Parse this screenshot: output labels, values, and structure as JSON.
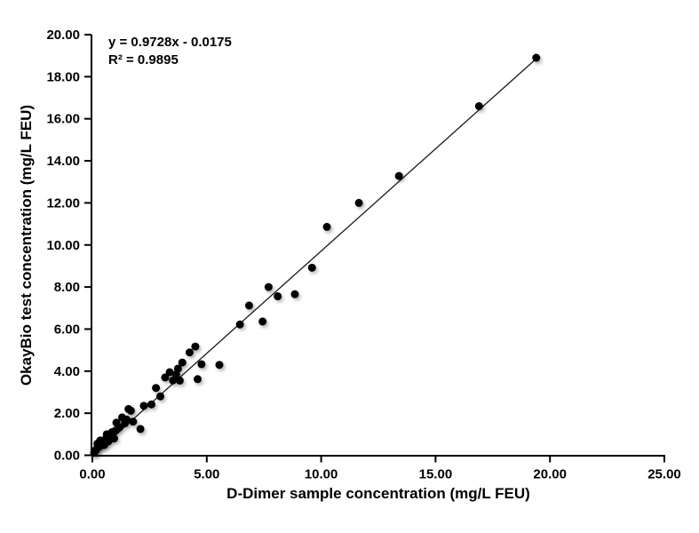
{
  "chart_data": {
    "type": "scatter",
    "title": "",
    "xlabel": "D-Dimer sample concentration (mg/L FEU)",
    "ylabel": "OkayBio test concentration (mg/L FEU)",
    "annotation": {
      "equation": "y = 0.9728x - 0.0175",
      "r_squared": "R² = 0.9895"
    },
    "legend": "none",
    "grid": false,
    "x_axis": {
      "min": 0,
      "max": 25,
      "tick_values": [
        0,
        5,
        10,
        15,
        20,
        25
      ],
      "tick_labels": [
        "0.00",
        "5.00",
        "10.00",
        "15.00",
        "20.00",
        "25.00"
      ]
    },
    "y_axis": {
      "min": 0,
      "max": 20,
      "tick_values": [
        0,
        2,
        4,
        6,
        8,
        10,
        12,
        14,
        16,
        18,
        20
      ],
      "tick_labels": [
        "0.00",
        "2.00",
        "4.00",
        "6.00",
        "8.00",
        "10.00",
        "12.00",
        "14.00",
        "16.00",
        "18.00",
        "20.00"
      ]
    },
    "trendline": {
      "slope": 0.9728,
      "intercept": -0.0175,
      "x_start": 0.2,
      "x_end": 19.4
    },
    "points": [
      [
        0.08,
        0.12
      ],
      [
        0.13,
        0.22
      ],
      [
        0.18,
        0.3
      ],
      [
        0.22,
        0.55
      ],
      [
        0.28,
        0.4
      ],
      [
        0.34,
        0.7
      ],
      [
        0.4,
        0.48
      ],
      [
        0.45,
        0.62
      ],
      [
        0.52,
        0.5
      ],
      [
        0.58,
        0.78
      ],
      [
        0.63,
        1.0
      ],
      [
        0.7,
        0.66
      ],
      [
        0.78,
        0.9
      ],
      [
        0.86,
        1.1
      ],
      [
        0.95,
        0.8
      ],
      [
        1.02,
        1.18
      ],
      [
        1.05,
        1.55
      ],
      [
        1.18,
        1.32
      ],
      [
        1.3,
        1.8
      ],
      [
        1.42,
        1.52
      ],
      [
        1.5,
        1.7
      ],
      [
        1.58,
        2.2
      ],
      [
        1.68,
        2.12
      ],
      [
        1.78,
        1.6
      ],
      [
        2.1,
        1.25
      ],
      [
        2.25,
        2.35
      ],
      [
        2.58,
        2.42
      ],
      [
        2.78,
        3.2
      ],
      [
        2.97,
        2.8
      ],
      [
        3.18,
        3.7
      ],
      [
        3.38,
        3.95
      ],
      [
        3.52,
        3.56
      ],
      [
        3.66,
        3.84
      ],
      [
        3.74,
        4.12
      ],
      [
        3.82,
        3.55
      ],
      [
        3.93,
        4.41
      ],
      [
        4.25,
        4.89
      ],
      [
        4.5,
        5.17
      ],
      [
        4.6,
        3.62
      ],
      [
        4.77,
        4.33
      ],
      [
        5.55,
        4.3
      ],
      [
        6.45,
        6.22
      ],
      [
        6.85,
        7.12
      ],
      [
        7.44,
        6.36
      ],
      [
        7.7,
        8.0
      ],
      [
        8.1,
        7.56
      ],
      [
        8.85,
        7.66
      ],
      [
        9.6,
        8.92
      ],
      [
        10.25,
        10.86
      ],
      [
        11.65,
        12.0
      ],
      [
        13.4,
        13.28
      ],
      [
        16.9,
        16.6
      ],
      [
        19.4,
        18.9
      ]
    ],
    "colors": {
      "marker": "#000000",
      "line": "#1a1a1a",
      "axis": "#000000",
      "text": "#000000",
      "background": "#ffffff"
    }
  }
}
